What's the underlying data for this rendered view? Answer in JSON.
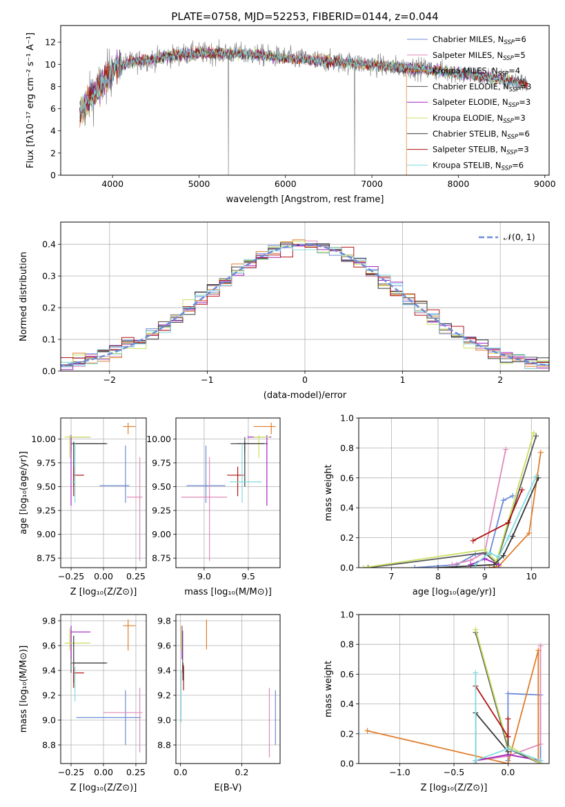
{
  "colors": {
    "Chabrier MILES": "#6a8ad8",
    "Salpeter MILES": "#e08ab8",
    "Kroupa MILES": "#e07c28",
    "Chabrier ELODIE": "#555555",
    "Salpeter ELODIE": "#a020c0",
    "Kroupa ELODIE": "#c8e060",
    "Chabrier STELIB": "#333333",
    "Salpeter STELIB": "#b01010",
    "Kroupa STELIB": "#80dce0",
    "data": "#808080"
  },
  "chart_data": [
    {
      "id": "spectrum",
      "type": "line",
      "title": "PLATE=0758, MJD=52253, FIBERID=0144, z=0.044",
      "xlabel": "wavelength [Angstrom, rest frame]",
      "ylabel": "Flux [fλ10⁻¹⁷ erg cm⁻² s⁻¹ A⁻¹]",
      "xlim": [
        3400,
        9050
      ],
      "ylim": [
        0,
        13.5
      ],
      "xticks": [
        4000,
        5000,
        6000,
        7000,
        8000,
        9000
      ],
      "yticks": [
        0,
        2,
        4,
        6,
        8,
        10,
        12
      ],
      "grid": false,
      "legend_position": "upper-right",
      "legend": [
        {
          "label": "Chabrier MILES, N",
          "sub": "SSP",
          "suffix": "=6"
        },
        {
          "label": "Salpeter MILES, N",
          "sub": "SSP",
          "suffix": "=5"
        },
        {
          "label": "Kroupa MILES, N",
          "sub": "SSP",
          "suffix": "=4"
        },
        {
          "label": "Chabrier ELODIE, N",
          "sub": "SSP",
          "suffix": "=3"
        },
        {
          "label": "Salpeter ELODIE, N",
          "sub": "SSP",
          "suffix": "=3"
        },
        {
          "label": "Kroupa ELODIE, N",
          "sub": "SSP",
          "suffix": "=3"
        },
        {
          "label": "Chabrier STELIB, N",
          "sub": "SSP",
          "suffix": "=6"
        },
        {
          "label": "Salpeter STELIB, N",
          "sub": "SSP",
          "suffix": "=3"
        },
        {
          "label": "Kroupa STELIB, N",
          "sub": "SSP",
          "suffix": "=6"
        }
      ],
      "continuum_x": [
        3620,
        3700,
        3800,
        3900,
        4000,
        4100,
        4300,
        4500,
        4800,
        5000,
        5300,
        5600,
        6000,
        6400,
        6800,
        7200,
        7600,
        8000,
        8400,
        8800
      ],
      "continuum_y": [
        5.5,
        6.5,
        7.5,
        8.5,
        9.5,
        10.0,
        10.3,
        10.5,
        10.9,
        11.0,
        11.0,
        10.9,
        10.6,
        10.3,
        10.1,
        9.8,
        9.6,
        9.2,
        8.8,
        8.2
      ],
      "models_x_end": {
        "Kroupa MILES": 7400,
        "Kroupa STELIB": 8700
      }
    },
    {
      "id": "residuals",
      "type": "step",
      "xlabel": "(data-model)/error",
      "ylabel": "Normed distribution",
      "xlim": [
        -2.5,
        2.5
      ],
      "ylim": [
        0,
        0.47
      ],
      "xticks": [
        -2,
        -1,
        0,
        1,
        2
      ],
      "yticks": [
        0.0,
        0.1,
        0.2,
        0.3,
        0.4
      ],
      "grid": true,
      "legend": [
        {
          "label": "𝒩(0, 1)",
          "style": "dashed"
        }
      ],
      "bin_width": 0.125
    },
    {
      "id": "age-vs-Z",
      "type": "scatter-errorbar",
      "xlabel": "Z [log₁₀(Z/Z⊙)]",
      "ylabel": "age  [log₁₀(age/yr)]",
      "xlim": [
        -0.33,
        0.33
      ],
      "ylim": [
        8.65,
        10.22
      ],
      "xticks": [
        -0.25,
        0.0,
        0.25
      ],
      "yticks": [
        8.75,
        9.0,
        9.25,
        9.5,
        9.75,
        10.0
      ],
      "grid": true,
      "points": [
        {
          "model": "Chabrier MILES",
          "x": 0.17,
          "xerr": [
            0.2,
            0.03
          ],
          "y": 9.51,
          "yerr": [
            0.18,
            0.42
          ]
        },
        {
          "model": "Salpeter MILES",
          "x": 0.28,
          "xerr": [
            0.1,
            0.02
          ],
          "y": 9.39,
          "yerr": [
            0.67,
            0.42
          ]
        },
        {
          "model": "Kroupa MILES",
          "x": 0.19,
          "xerr": [
            0.04,
            0.06
          ],
          "y": 10.13,
          "yerr": [
            0.08,
            0.04
          ]
        },
        {
          "model": "Chabrier ELODIE",
          "x": -0.25,
          "xerr": [
            0.0,
            0.28
          ],
          "y": 9.95,
          "yerr": [
            0.09,
            0.07
          ]
        },
        {
          "model": "Salpeter ELODIE",
          "x": -0.25,
          "xerr": [
            0.0,
            0.15
          ],
          "y": 10.02,
          "yerr": [
            0.72,
            0.02
          ]
        },
        {
          "model": "Kroupa ELODIE",
          "x": -0.26,
          "xerr": [
            0.04,
            0.16
          ],
          "y": 10.02,
          "yerr": [
            0.22,
            0.02
          ]
        },
        {
          "model": "Chabrier STELIB",
          "x": -0.23,
          "xerr": [
            0.0,
            0.25
          ],
          "y": 9.95,
          "yerr": [
            0.45,
            0.02
          ]
        },
        {
          "model": "Salpeter STELIB",
          "x": -0.23,
          "xerr": [
            0.0,
            0.08
          ],
          "y": 9.62,
          "yerr": [
            0.22,
            0.09
          ]
        },
        {
          "model": "Kroupa STELIB",
          "x": -0.22,
          "xerr": [
            0.04,
            0.0
          ],
          "y": 9.55,
          "yerr": [
            0.22,
            0.4
          ]
        }
      ]
    },
    {
      "id": "age-vs-mass",
      "type": "scatter-errorbar",
      "xlabel": "mass [log₁₀(M/M⊙)]",
      "ylabel": "",
      "xlim": [
        8.68,
        9.86
      ],
      "ylim": [
        8.65,
        10.22
      ],
      "xticks": [
        9.0,
        9.5
      ],
      "yticks": [
        8.75,
        9.0,
        9.25,
        9.5,
        9.75,
        10.0
      ],
      "grid": true,
      "points": [
        {
          "model": "Chabrier MILES",
          "x": 9.02,
          "xerr": [
            0.22,
            0.22
          ],
          "y": 9.51,
          "yerr": [
            0.18,
            0.42
          ]
        },
        {
          "model": "Salpeter MILES",
          "x": 9.06,
          "xerr": [
            0.32,
            0.2
          ],
          "y": 9.39,
          "yerr": [
            0.67,
            0.42
          ]
        },
        {
          "model": "Kroupa MILES",
          "x": 9.76,
          "xerr": [
            0.2,
            0.05
          ],
          "y": 10.13,
          "yerr": [
            0.08,
            0.04
          ]
        },
        {
          "model": "Chabrier ELODIE",
          "x": 9.46,
          "xerr": [
            0.08,
            0.26
          ],
          "y": 9.95,
          "yerr": [
            0.09,
            0.07
          ]
        },
        {
          "model": "Salpeter ELODIE",
          "x": 9.71,
          "xerr": [
            0.22,
            0.05
          ],
          "y": 10.02,
          "yerr": [
            0.72,
            0.02
          ]
        },
        {
          "model": "Kroupa ELODIE",
          "x": 9.62,
          "xerr": [
            0.06,
            0.12
          ],
          "y": 10.02,
          "yerr": [
            0.22,
            0.02
          ]
        },
        {
          "model": "Chabrier STELIB",
          "x": 9.46,
          "xerr": [
            0.16,
            0.22
          ],
          "y": 9.95,
          "yerr": [
            0.45,
            0.02
          ]
        },
        {
          "model": "Salpeter STELIB",
          "x": 9.38,
          "xerr": [
            0.12,
            0.07
          ],
          "y": 9.62,
          "yerr": [
            0.22,
            0.09
          ]
        },
        {
          "model": "Kroupa STELIB",
          "x": 9.43,
          "xerr": [
            0.14,
            0.22
          ],
          "y": 9.55,
          "yerr": [
            0.22,
            0.4
          ]
        }
      ]
    },
    {
      "id": "weight-vs-age",
      "type": "line",
      "xlabel": "age  [log₁₀(age/yr)]",
      "ylabel": "mass weight",
      "xlim": [
        6.3,
        10.38
      ],
      "ylim": [
        0,
        1.0
      ],
      "xticks": [
        7,
        8,
        9,
        10
      ],
      "yticks": [
        0.0,
        0.2,
        0.4,
        0.6,
        0.8,
        1.0
      ],
      "grid": true,
      "series": [
        {
          "model": "Chabrier MILES",
          "x": [
            7.5,
            8.4,
            8.8,
            9.1,
            9.4,
            9.6
          ],
          "y": [
            0.0,
            0.02,
            0.09,
            0.09,
            0.45,
            0.48
          ]
        },
        {
          "model": "Salpeter MILES",
          "x": [
            8.3,
            8.7,
            9.0,
            9.45
          ],
          "y": [
            0.02,
            0.05,
            0.1,
            0.79
          ]
        },
        {
          "model": "Kroupa MILES",
          "x": [
            9.1,
            9.3,
            9.95,
            10.2
          ],
          "y": [
            0.0,
            0.01,
            0.23,
            0.77
          ]
        },
        {
          "model": "Chabrier ELODIE",
          "x": [
            6.5,
            9.0,
            9.25,
            10.1
          ],
          "y": [
            0.0,
            0.1,
            0.03,
            0.88
          ]
        },
        {
          "model": "Salpeter ELODIE",
          "x": [
            8.7,
            9.0,
            9.3
          ],
          "y": [
            0.02,
            0.06,
            0.02
          ]
        },
        {
          "model": "Kroupa ELODIE",
          "x": [
            6.4,
            9.0,
            9.25,
            10.05
          ],
          "y": [
            0.0,
            0.12,
            0.04,
            0.9
          ]
        },
        {
          "model": "Chabrier STELIB",
          "x": [
            8.0,
            9.2,
            9.4,
            9.6,
            10.15
          ],
          "y": [
            0.0,
            0.02,
            0.08,
            0.21,
            0.6
          ]
        },
        {
          "model": "Salpeter STELIB",
          "x": [
            8.75,
            9.5,
            9.8
          ],
          "y": [
            0.18,
            0.3,
            0.52
          ]
        },
        {
          "model": "Kroupa STELIB",
          "x": [
            8.8,
            9.1,
            9.3,
            9.5,
            10.1
          ],
          "y": [
            0.02,
            0.1,
            0.07,
            0.2,
            0.61
          ]
        }
      ]
    },
    {
      "id": "mass-vs-Z",
      "type": "scatter-errorbar",
      "xlabel": "Z [log₁₀(Z/Z⊙)]",
      "ylabel": "mass [log₁₀(M/M⊙)]",
      "xlim": [
        -0.33,
        0.33
      ],
      "ylim": [
        8.65,
        9.85
      ],
      "xticks": [
        -0.25,
        0.0,
        0.25
      ],
      "yticks": [
        8.8,
        9.0,
        9.2,
        9.4,
        9.6,
        9.8
      ],
      "grid": true,
      "points": [
        {
          "model": "Chabrier MILES",
          "x": 0.17,
          "xerr": [
            0.38,
            0.12
          ],
          "y": 9.02,
          "yerr": [
            0.22,
            0.22
          ]
        },
        {
          "model": "Salpeter MILES",
          "x": 0.28,
          "xerr": [
            0.28,
            0.02
          ],
          "y": 9.06,
          "yerr": [
            0.32,
            0.2
          ]
        },
        {
          "model": "Kroupa MILES",
          "x": 0.19,
          "xerr": [
            0.04,
            0.06
          ],
          "y": 9.76,
          "yerr": [
            0.2,
            0.05
          ]
        },
        {
          "model": "Chabrier ELODIE",
          "x": -0.25,
          "xerr": [
            0.0,
            0.28
          ],
          "y": 9.46,
          "yerr": [
            0.08,
            0.26
          ]
        },
        {
          "model": "Salpeter ELODIE",
          "x": -0.25,
          "xerr": [
            0.0,
            0.15
          ],
          "y": 9.71,
          "yerr": [
            0.22,
            0.05
          ]
        },
        {
          "model": "Kroupa ELODIE",
          "x": -0.26,
          "xerr": [
            0.04,
            0.16
          ],
          "y": 9.62,
          "yerr": [
            0.06,
            0.12
          ]
        },
        {
          "model": "Chabrier STELIB",
          "x": -0.23,
          "xerr": [
            0.0,
            0.25
          ],
          "y": 9.46,
          "yerr": [
            0.16,
            0.22
          ]
        },
        {
          "model": "Salpeter STELIB",
          "x": -0.23,
          "xerr": [
            0.0,
            0.08
          ],
          "y": 9.38,
          "yerr": [
            0.12,
            0.07
          ]
        },
        {
          "model": "Kroupa STELIB",
          "x": -0.22,
          "xerr": [
            0.04,
            0.0
          ],
          "y": 9.43,
          "yerr": [
            0.28,
            0.0
          ]
        }
      ]
    },
    {
      "id": "mass-vs-EBV",
      "type": "scatter-errorbar",
      "xlabel": "E(B-V)",
      "ylabel": "",
      "xlim": [
        -0.015,
        0.325
      ],
      "ylim": [
        8.65,
        9.85
      ],
      "xticks": [
        0.0,
        0.2
      ],
      "yticks": [
        8.8,
        9.0,
        9.2,
        9.4,
        9.6,
        9.8
      ],
      "grid": true,
      "points": [
        {
          "model": "Chabrier MILES",
          "x": 0.31,
          "xerr": [
            0,
            0
          ],
          "y": 9.02,
          "yerr": [
            0.22,
            0.22
          ]
        },
        {
          "model": "Salpeter MILES",
          "x": 0.29,
          "xerr": [
            0,
            0
          ],
          "y": 9.06,
          "yerr": [
            0.36,
            0.2
          ]
        },
        {
          "model": "Kroupa MILES",
          "x": 0.085,
          "xerr": [
            0,
            0
          ],
          "y": 9.71,
          "yerr": [
            0.14,
            0.1
          ]
        },
        {
          "model": "Chabrier ELODIE",
          "x": 0.007,
          "xerr": [
            0,
            0
          ],
          "y": 9.46,
          "yerr": [
            0.08,
            0.26
          ]
        },
        {
          "model": "Salpeter ELODIE",
          "x": 0.005,
          "xerr": [
            0,
            0
          ],
          "y": 9.71,
          "yerr": [
            0.22,
            0.05
          ]
        },
        {
          "model": "Kroupa ELODIE",
          "x": 0.003,
          "xerr": [
            0,
            0
          ],
          "y": 9.62,
          "yerr": [
            0.06,
            0.14
          ]
        },
        {
          "model": "Chabrier STELIB",
          "x": 0.008,
          "xerr": [
            0,
            0
          ],
          "y": 9.38,
          "yerr": [
            0.06,
            0.08
          ]
        },
        {
          "model": "Salpeter STELIB",
          "x": 0.01,
          "xerr": [
            0,
            0
          ],
          "y": 9.38,
          "yerr": [
            0.14,
            0.06
          ]
        },
        {
          "model": "Kroupa STELIB",
          "x": 0.002,
          "xerr": [
            0,
            0
          ],
          "y": 9.2,
          "yerr": [
            0.22,
            0.2
          ]
        }
      ]
    },
    {
      "id": "weight-vs-Z",
      "type": "line",
      "xlabel": "Z [log₁₀(Z/Z⊙)]",
      "ylabel": "mass weight",
      "xlim": [
        -1.38,
        0.38
      ],
      "ylim": [
        0,
        1.0
      ],
      "xticks": [
        -1.0,
        -0.5,
        0.0
      ],
      "yticks": [
        0.0,
        0.2,
        0.4,
        0.6,
        0.8,
        1.0
      ],
      "grid": true,
      "series": [
        {
          "model": "Chabrier MILES",
          "x": [
            0.0,
            0.0,
            0.3,
            0.3
          ],
          "y": [
            0.02,
            0.47,
            0.46,
            0.0
          ]
        },
        {
          "model": "Salpeter MILES",
          "x": [
            -0.3,
            0.0,
            0.3,
            0.3
          ],
          "y": [
            0.02,
            0.05,
            0.13,
            0.79
          ]
        },
        {
          "model": "Kroupa MILES",
          "x": [
            -1.3,
            0.0,
            0.28,
            0.28
          ],
          "y": [
            0.22,
            0.0,
            0.76,
            0.01
          ]
        },
        {
          "model": "Chabrier ELODIE",
          "x": [
            -0.3,
            0.0,
            0.3
          ],
          "y": [
            0.88,
            0.1,
            0.0
          ]
        },
        {
          "model": "Salpeter ELODIE",
          "x": [
            -0.3,
            0.0,
            0.3
          ],
          "y": [
            0.02,
            0.06,
            0.02
          ]
        },
        {
          "model": "Kroupa ELODIE",
          "x": [
            -0.3,
            0.0,
            0.3
          ],
          "y": [
            0.9,
            0.12,
            0.0
          ]
        },
        {
          "model": "Chabrier STELIB",
          "x": [
            -0.3,
            -0.3,
            0.0,
            0.0
          ],
          "y": [
            0.0,
            0.34,
            0.08,
            0.18
          ]
        },
        {
          "model": "Salpeter STELIB",
          "x": [
            -0.3,
            0.0,
            0.0
          ],
          "y": [
            0.52,
            0.18,
            0.3
          ]
        },
        {
          "model": "Kroupa STELIB",
          "x": [
            -0.3,
            -0.3,
            0.0,
            0.3
          ],
          "y": [
            0.61,
            0.02,
            0.1,
            0.02
          ]
        }
      ]
    }
  ]
}
